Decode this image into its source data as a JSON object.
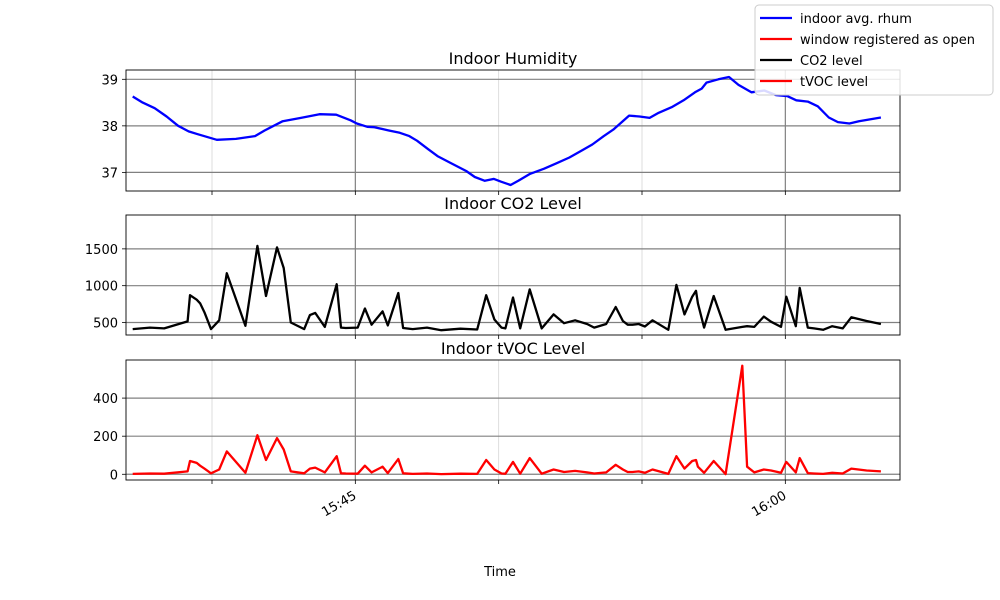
{
  "figure": {
    "xlabel": "Time",
    "legend": {
      "placement": "upper-right",
      "entries": [
        {
          "label": "indoor avg. rhum",
          "color": "#0000ff"
        },
        {
          "label": "window registered as open",
          "color": "#ff0000"
        },
        {
          "label": "CO2 level",
          "color": "#000000"
        },
        {
          "label": "tVOC level",
          "color": "#ff0000"
        }
      ]
    }
  },
  "chart_data": [
    {
      "type": "line",
      "title": "Indoor Humidity",
      "ylim": [
        36.6,
        39.2
      ],
      "yticks": [
        37,
        38,
        39
      ],
      "xlim": [
        "15:37",
        "16:04"
      ],
      "grid": true,
      "series": [
        {
          "name": "indoor avg. rhum",
          "color": "#0000ff",
          "x": [
            "15:37:14",
            "15:37:35",
            "15:38:00",
            "15:38:25",
            "15:38:49",
            "15:39:11",
            "15:39:30",
            "15:40:10",
            "15:40:50",
            "15:41:30",
            "15:41:50",
            "15:42:28",
            "15:43:06",
            "15:43:45",
            "15:44:20",
            "15:44:50",
            "15:45:03",
            "15:45:25",
            "15:45:40",
            "15:46:10",
            "15:46:33",
            "15:46:53",
            "15:47:09",
            "15:47:32",
            "15:47:52",
            "15:48:20",
            "15:48:52",
            "15:49:10",
            "15:49:31",
            "15:49:50",
            "15:50:05",
            "15:50:25",
            "15:50:41",
            "15:51:06",
            "15:51:35",
            "15:52:02",
            "15:52:28",
            "15:52:54",
            "15:53:16",
            "15:53:40",
            "15:54:00",
            "15:54:12",
            "15:54:33",
            "15:54:55",
            "15:55:16",
            "15:55:35",
            "15:56:02",
            "15:56:27",
            "15:56:51",
            "15:57:05",
            "15:57:15",
            "15:57:40",
            "15:58:02",
            "15:58:22",
            "15:58:49",
            "15:59:16",
            "15:59:40",
            "16:00:04",
            "16:00:23",
            "16:00:47",
            "16:01:08",
            "16:01:31",
            "16:01:50",
            "16:02:14",
            "16:02:34",
            "16:03:20"
          ],
          "values": [
            38.63,
            38.5,
            38.38,
            38.2,
            38.0,
            37.88,
            37.82,
            37.7,
            37.72,
            37.78,
            37.9,
            38.1,
            38.17,
            38.25,
            38.24,
            38.12,
            38.05,
            37.98,
            37.97,
            37.9,
            37.85,
            37.78,
            37.68,
            37.5,
            37.35,
            37.2,
            37.03,
            36.9,
            36.82,
            36.86,
            36.8,
            36.73,
            36.82,
            36.97,
            37.08,
            37.2,
            37.32,
            37.47,
            37.6,
            37.78,
            37.92,
            38.03,
            38.22,
            38.2,
            38.17,
            38.28,
            38.4,
            38.55,
            38.72,
            38.8,
            38.93,
            39.0,
            39.05,
            38.88,
            38.72,
            38.76,
            38.66,
            38.64,
            38.55,
            38.52,
            38.42,
            38.18,
            38.08,
            38.05,
            38.1,
            38.18
          ]
        }
      ]
    },
    {
      "type": "line",
      "title": "Indoor CO2 Level",
      "ylim": [
        330,
        1960
      ],
      "yticks": [
        500,
        1000,
        1500
      ],
      "xlim": [
        "15:37",
        "16:04"
      ],
      "grid": true,
      "series": [
        {
          "name": "CO2 level",
          "color": "#000000",
          "x": [
            "15:37:14",
            "15:37:50",
            "15:38:20",
            "15:39:09",
            "15:39:14",
            "15:39:28",
            "15:39:35",
            "15:39:44",
            "15:39:58",
            "15:40:15",
            "15:40:31",
            "15:41:10",
            "15:41:35",
            "15:41:53",
            "15:42:16",
            "15:42:30",
            "15:42:45",
            "15:43:13",
            "15:43:25",
            "15:43:36",
            "15:43:56",
            "15:44:21",
            "15:44:30",
            "15:44:40",
            "15:45:05",
            "15:45:20",
            "15:45:34",
            "15:45:57",
            "15:46:08",
            "15:46:30",
            "15:46:40",
            "15:47:00",
            "15:47:30",
            "15:48:00",
            "15:48:40",
            "15:49:15",
            "15:49:34",
            "15:49:51",
            "15:50:06",
            "15:50:14",
            "15:50:30",
            "15:50:45",
            "15:51:05",
            "15:51:30",
            "15:51:55",
            "15:52:17",
            "15:52:40",
            "15:53:05",
            "15:53:20",
            "15:53:45",
            "15:54:05",
            "15:54:20",
            "15:54:30",
            "15:54:40",
            "15:54:53",
            "15:55:06",
            "15:55:22",
            "15:55:55",
            "15:56:12",
            "15:56:29",
            "15:56:45",
            "15:56:53",
            "15:56:57",
            "15:57:10",
            "15:57:30",
            "15:57:55",
            "15:58:30",
            "15:58:40",
            "15:58:55",
            "15:59:15",
            "15:59:30",
            "15:59:51",
            "16:00:02",
            "16:00:22",
            "16:00:30",
            "16:00:47",
            "16:01:00",
            "16:01:19",
            "16:01:38",
            "16:02:00",
            "16:02:18",
            "16:02:50",
            "16:03:20"
          ],
          "values": [
            410,
            430,
            420,
            515,
            870,
            810,
            760,
            640,
            410,
            530,
            1170,
            455,
            1540,
            860,
            1520,
            1240,
            500,
            410,
            600,
            630,
            440,
            1020,
            430,
            425,
            430,
            690,
            470,
            650,
            460,
            900,
            425,
            410,
            430,
            395,
            415,
            405,
            870,
            540,
            430,
            420,
            840,
            420,
            950,
            420,
            610,
            490,
            530,
            480,
            430,
            480,
            710,
            520,
            470,
            470,
            480,
            445,
            530,
            400,
            1010,
            610,
            850,
            930,
            760,
            430,
            860,
            400,
            440,
            450,
            440,
            580,
            510,
            440,
            850,
            450,
            970,
            430,
            420,
            400,
            450,
            420,
            570,
            520,
            480
          ]
        }
      ]
    },
    {
      "type": "line",
      "title": "Indoor tVOC Level",
      "ylim": [
        -30,
        600
      ],
      "yticks": [
        0,
        200,
        400
      ],
      "xlim": [
        "15:37",
        "16:04"
      ],
      "grid": true,
      "series": [
        {
          "name": "tVOC level",
          "color": "#ff0000",
          "x": [
            "15:37:14",
            "15:37:50",
            "15:38:20",
            "15:39:09",
            "15:39:14",
            "15:39:28",
            "15:39:35",
            "15:39:44",
            "15:39:58",
            "15:40:15",
            "15:40:31",
            "15:41:10",
            "15:41:35",
            "15:41:53",
            "15:42:16",
            "15:42:30",
            "15:42:45",
            "15:43:13",
            "15:43:25",
            "15:43:36",
            "15:43:56",
            "15:44:21",
            "15:44:30",
            "15:44:40",
            "15:45:05",
            "15:45:20",
            "15:45:34",
            "15:45:57",
            "15:46:08",
            "15:46:30",
            "15:46:40",
            "15:47:00",
            "15:47:30",
            "15:48:00",
            "15:48:40",
            "15:49:15",
            "15:49:34",
            "15:49:51",
            "15:50:06",
            "15:50:14",
            "15:50:30",
            "15:50:45",
            "15:51:05",
            "15:51:30",
            "15:51:55",
            "15:52:17",
            "15:52:40",
            "15:53:05",
            "15:53:20",
            "15:53:45",
            "15:54:05",
            "15:54:20",
            "15:54:30",
            "15:54:40",
            "15:54:53",
            "15:55:06",
            "15:55:22",
            "15:55:55",
            "15:56:12",
            "15:56:29",
            "15:56:45",
            "15:56:53",
            "15:56:57",
            "15:57:10",
            "15:57:30",
            "15:57:55",
            "15:58:30",
            "15:58:40",
            "15:58:55",
            "15:59:15",
            "15:59:30",
            "15:59:51",
            "16:00:02",
            "16:00:22",
            "16:00:30",
            "16:00:47",
            "16:01:00",
            "16:01:19",
            "16:01:38",
            "16:02:00",
            "16:02:18",
            "16:02:50",
            "16:03:20"
          ],
          "values": [
            2,
            4,
            3,
            15,
            70,
            60,
            45,
            30,
            5,
            25,
            120,
            8,
            205,
            75,
            190,
            130,
            15,
            5,
            30,
            35,
            10,
            95,
            5,
            4,
            3,
            45,
            10,
            40,
            6,
            80,
            5,
            2,
            4,
            1,
            3,
            2,
            75,
            25,
            4,
            3,
            65,
            3,
            85,
            3,
            25,
            12,
            18,
            10,
            4,
            10,
            50,
            25,
            12,
            12,
            15,
            8,
            25,
            2,
            95,
            30,
            70,
            75,
            40,
            8,
            70,
            1,
            570,
            40,
            10,
            25,
            20,
            8,
            65,
            10,
            85,
            6,
            4,
            2,
            8,
            4,
            30,
            20,
            15
          ]
        }
      ]
    }
  ]
}
